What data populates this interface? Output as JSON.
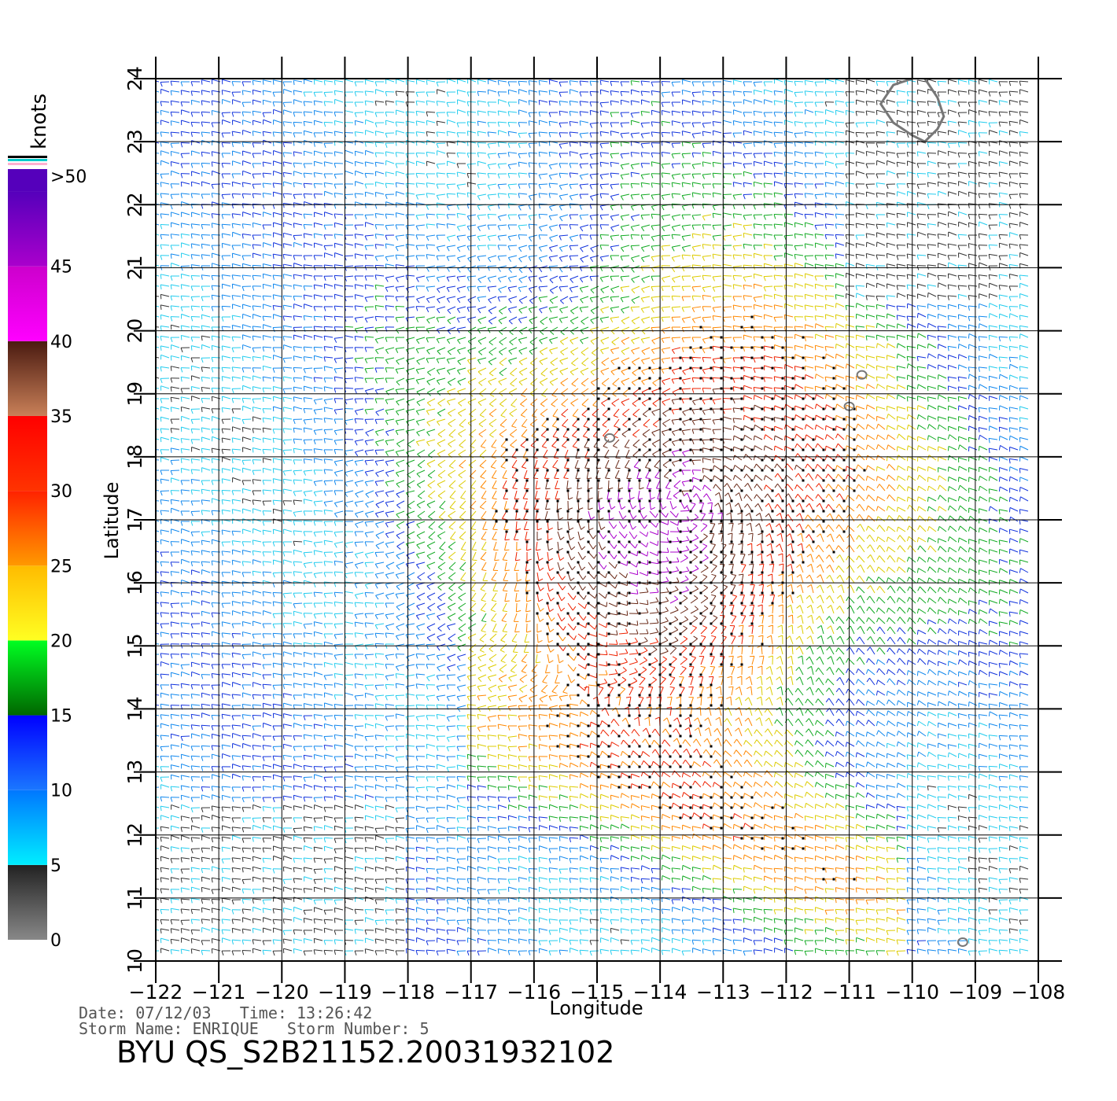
{
  "legend": {
    "unit_label": "knots",
    "levels": [
      {
        "label": "0",
        "from": 0,
        "to": 5,
        "colors": [
          "#888888",
          "#222222"
        ]
      },
      {
        "label": "5",
        "from": 5,
        "to": 10,
        "colors": [
          "#00eeff",
          "#0077ff"
        ]
      },
      {
        "label": "10",
        "from": 10,
        "to": 15,
        "colors": [
          "#1a77ff",
          "#0000ff"
        ]
      },
      {
        "label": "15",
        "from": 15,
        "to": 20,
        "colors": [
          "#006600",
          "#00ff22"
        ]
      },
      {
        "label": "20",
        "from": 20,
        "to": 25,
        "colors": [
          "#ffff22",
          "#ffbb00"
        ]
      },
      {
        "label": "25",
        "from": 25,
        "to": 30,
        "colors": [
          "#ff9900",
          "#ff2200"
        ]
      },
      {
        "label": "30",
        "from": 30,
        "to": 35,
        "colors": [
          "#ff3300",
          "#ff0000"
        ]
      },
      {
        "label": "35",
        "from": 35,
        "to": 40,
        "colors": [
          "#c98058",
          "#4a1a10"
        ]
      },
      {
        "label": "40",
        "from": 40,
        "to": 45,
        "colors": [
          "#ff00ff",
          "#cc00cc"
        ]
      },
      {
        "label": "45",
        "from": 45,
        "to": 50,
        "colors": [
          "#aa00cc",
          "#5500bb"
        ]
      },
      {
        "label": ">50",
        "from": 50,
        "to": 55,
        "colors": [
          "#5500bb",
          "#5500bb"
        ]
      }
    ]
  },
  "map": {
    "xlabel": "Longitude",
    "ylabel": "Latitude",
    "lon_range": [
      -122,
      -108
    ],
    "lat_range": [
      10,
      24
    ],
    "lon_ticks": [
      "-122",
      "-121",
      "-120",
      "-119",
      "-118",
      "-117",
      "-116",
      "-115",
      "-114",
      "-113",
      "-112",
      "-111",
      "-110",
      "-109",
      "-108"
    ],
    "lat_ticks": [
      "10",
      "11",
      "12",
      "13",
      "14",
      "15",
      "16",
      "17",
      "18",
      "19",
      "20",
      "21",
      "22",
      "23",
      "24"
    ],
    "storm_center": {
      "lon": -113.6,
      "lat": 17.3
    },
    "islands": [
      {
        "lon": -110.8,
        "lat": 19.3
      },
      {
        "lon": -111.0,
        "lat": 18.8
      },
      {
        "lon": -114.8,
        "lat": 18.3
      },
      {
        "lon": -109.2,
        "lat": 10.3
      }
    ],
    "coast": [
      [
        -110.0,
        24.0
      ],
      [
        -110.3,
        23.9
      ],
      [
        -110.5,
        23.6
      ],
      [
        -110.3,
        23.3
      ],
      [
        -110.0,
        23.1
      ],
      [
        -109.8,
        23.0
      ],
      [
        -109.6,
        23.2
      ],
      [
        -109.5,
        23.4
      ],
      [
        -109.6,
        23.7
      ],
      [
        -109.8,
        24.0
      ]
    ]
  },
  "info": {
    "date_line": "Date: 07/12/03   Time: 13:26:42",
    "storm_line": "Storm Name: ENRIQUE   Storm Number: 5",
    "product_title": "BYU QS_S2B21152.20031932102"
  }
}
